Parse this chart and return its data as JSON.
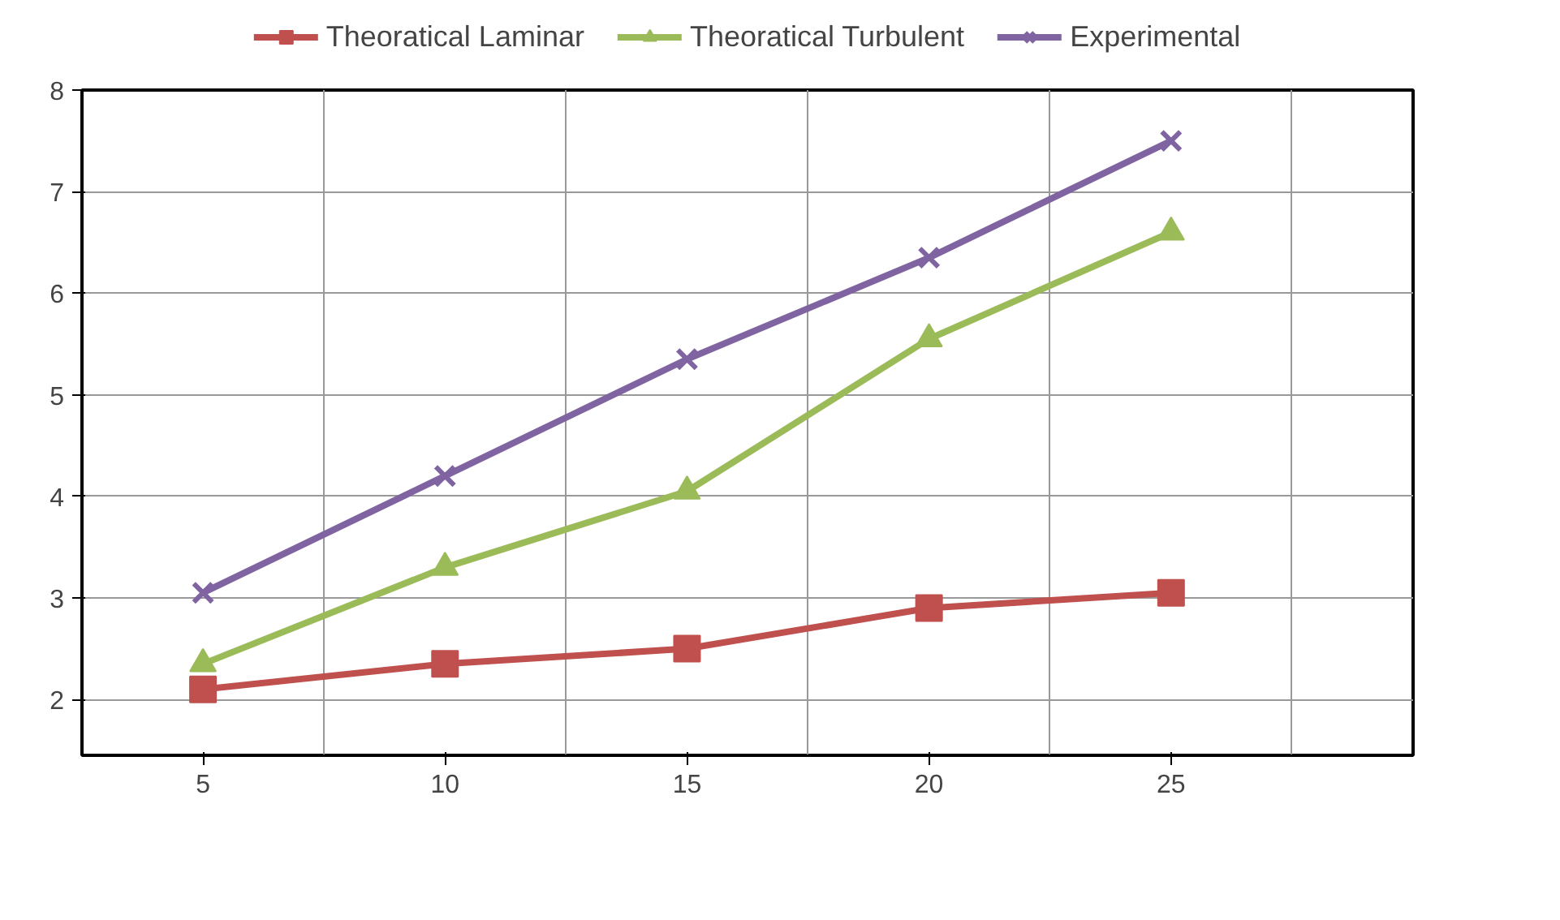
{
  "chart_data": {
    "type": "line",
    "categories": [
      "5",
      "10",
      "15",
      "20",
      "25"
    ],
    "series": [
      {
        "name": "Theoratical Laminar",
        "color": "#c0504d",
        "marker": "square",
        "values": [
          2.1,
          2.35,
          2.5,
          2.9,
          3.05
        ]
      },
      {
        "name": "Theoratical Turbulent",
        "color": "#9bbb59",
        "marker": "triangle",
        "values": [
          2.35,
          3.3,
          4.05,
          5.55,
          6.6
        ]
      },
      {
        "name": "Experimental",
        "color": "#8064a2",
        "marker": "cross",
        "values": [
          3.05,
          4.2,
          5.35,
          6.35,
          7.5
        ]
      }
    ],
    "ylim": [
      1.45,
      8
    ],
    "yticks": [
      2,
      3,
      4,
      5,
      6,
      7,
      8
    ],
    "grid": true,
    "legend": "top",
    "line_style": "solid"
  }
}
